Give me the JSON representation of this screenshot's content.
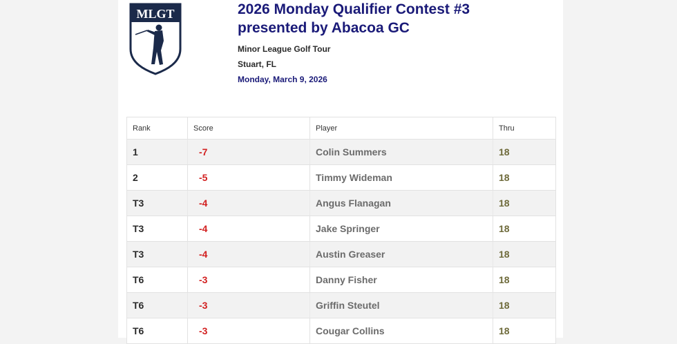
{
  "logo": {
    "text": "MLGT",
    "icon": "mlgt-shield-golfer-icon"
  },
  "event": {
    "title_line1": "2026 Monday Qualifier Contest #3",
    "title_line2": "presented by Abacoa GC",
    "organization": "Minor League Golf Tour",
    "location": "Stuart, FL",
    "date": "Monday, March 9, 2026"
  },
  "colors": {
    "title": "#1a1a78",
    "score_under_par": "#d22020",
    "thru": "#6e6a3a",
    "logo_navy": "#1b2a4a"
  },
  "leaderboard": {
    "columns": [
      "Rank",
      "Score",
      "Player",
      "Thru"
    ],
    "rows": [
      {
        "rank": "1",
        "score": "-7",
        "player": "Colin Summers",
        "thru": "18"
      },
      {
        "rank": "2",
        "score": "-5",
        "player": "Timmy Wideman",
        "thru": "18"
      },
      {
        "rank": "T3",
        "score": "-4",
        "player": "Angus Flanagan",
        "thru": "18"
      },
      {
        "rank": "T3",
        "score": "-4",
        "player": "Jake Springer",
        "thru": "18"
      },
      {
        "rank": "T3",
        "score": "-4",
        "player": "Austin Greaser",
        "thru": "18"
      },
      {
        "rank": "T6",
        "score": "-3",
        "player": "Danny Fisher",
        "thru": "18"
      },
      {
        "rank": "T6",
        "score": "-3",
        "player": "Griffin Steutel",
        "thru": "18"
      },
      {
        "rank": "T6",
        "score": "-3",
        "player": "Cougar Collins",
        "thru": "18"
      }
    ]
  }
}
